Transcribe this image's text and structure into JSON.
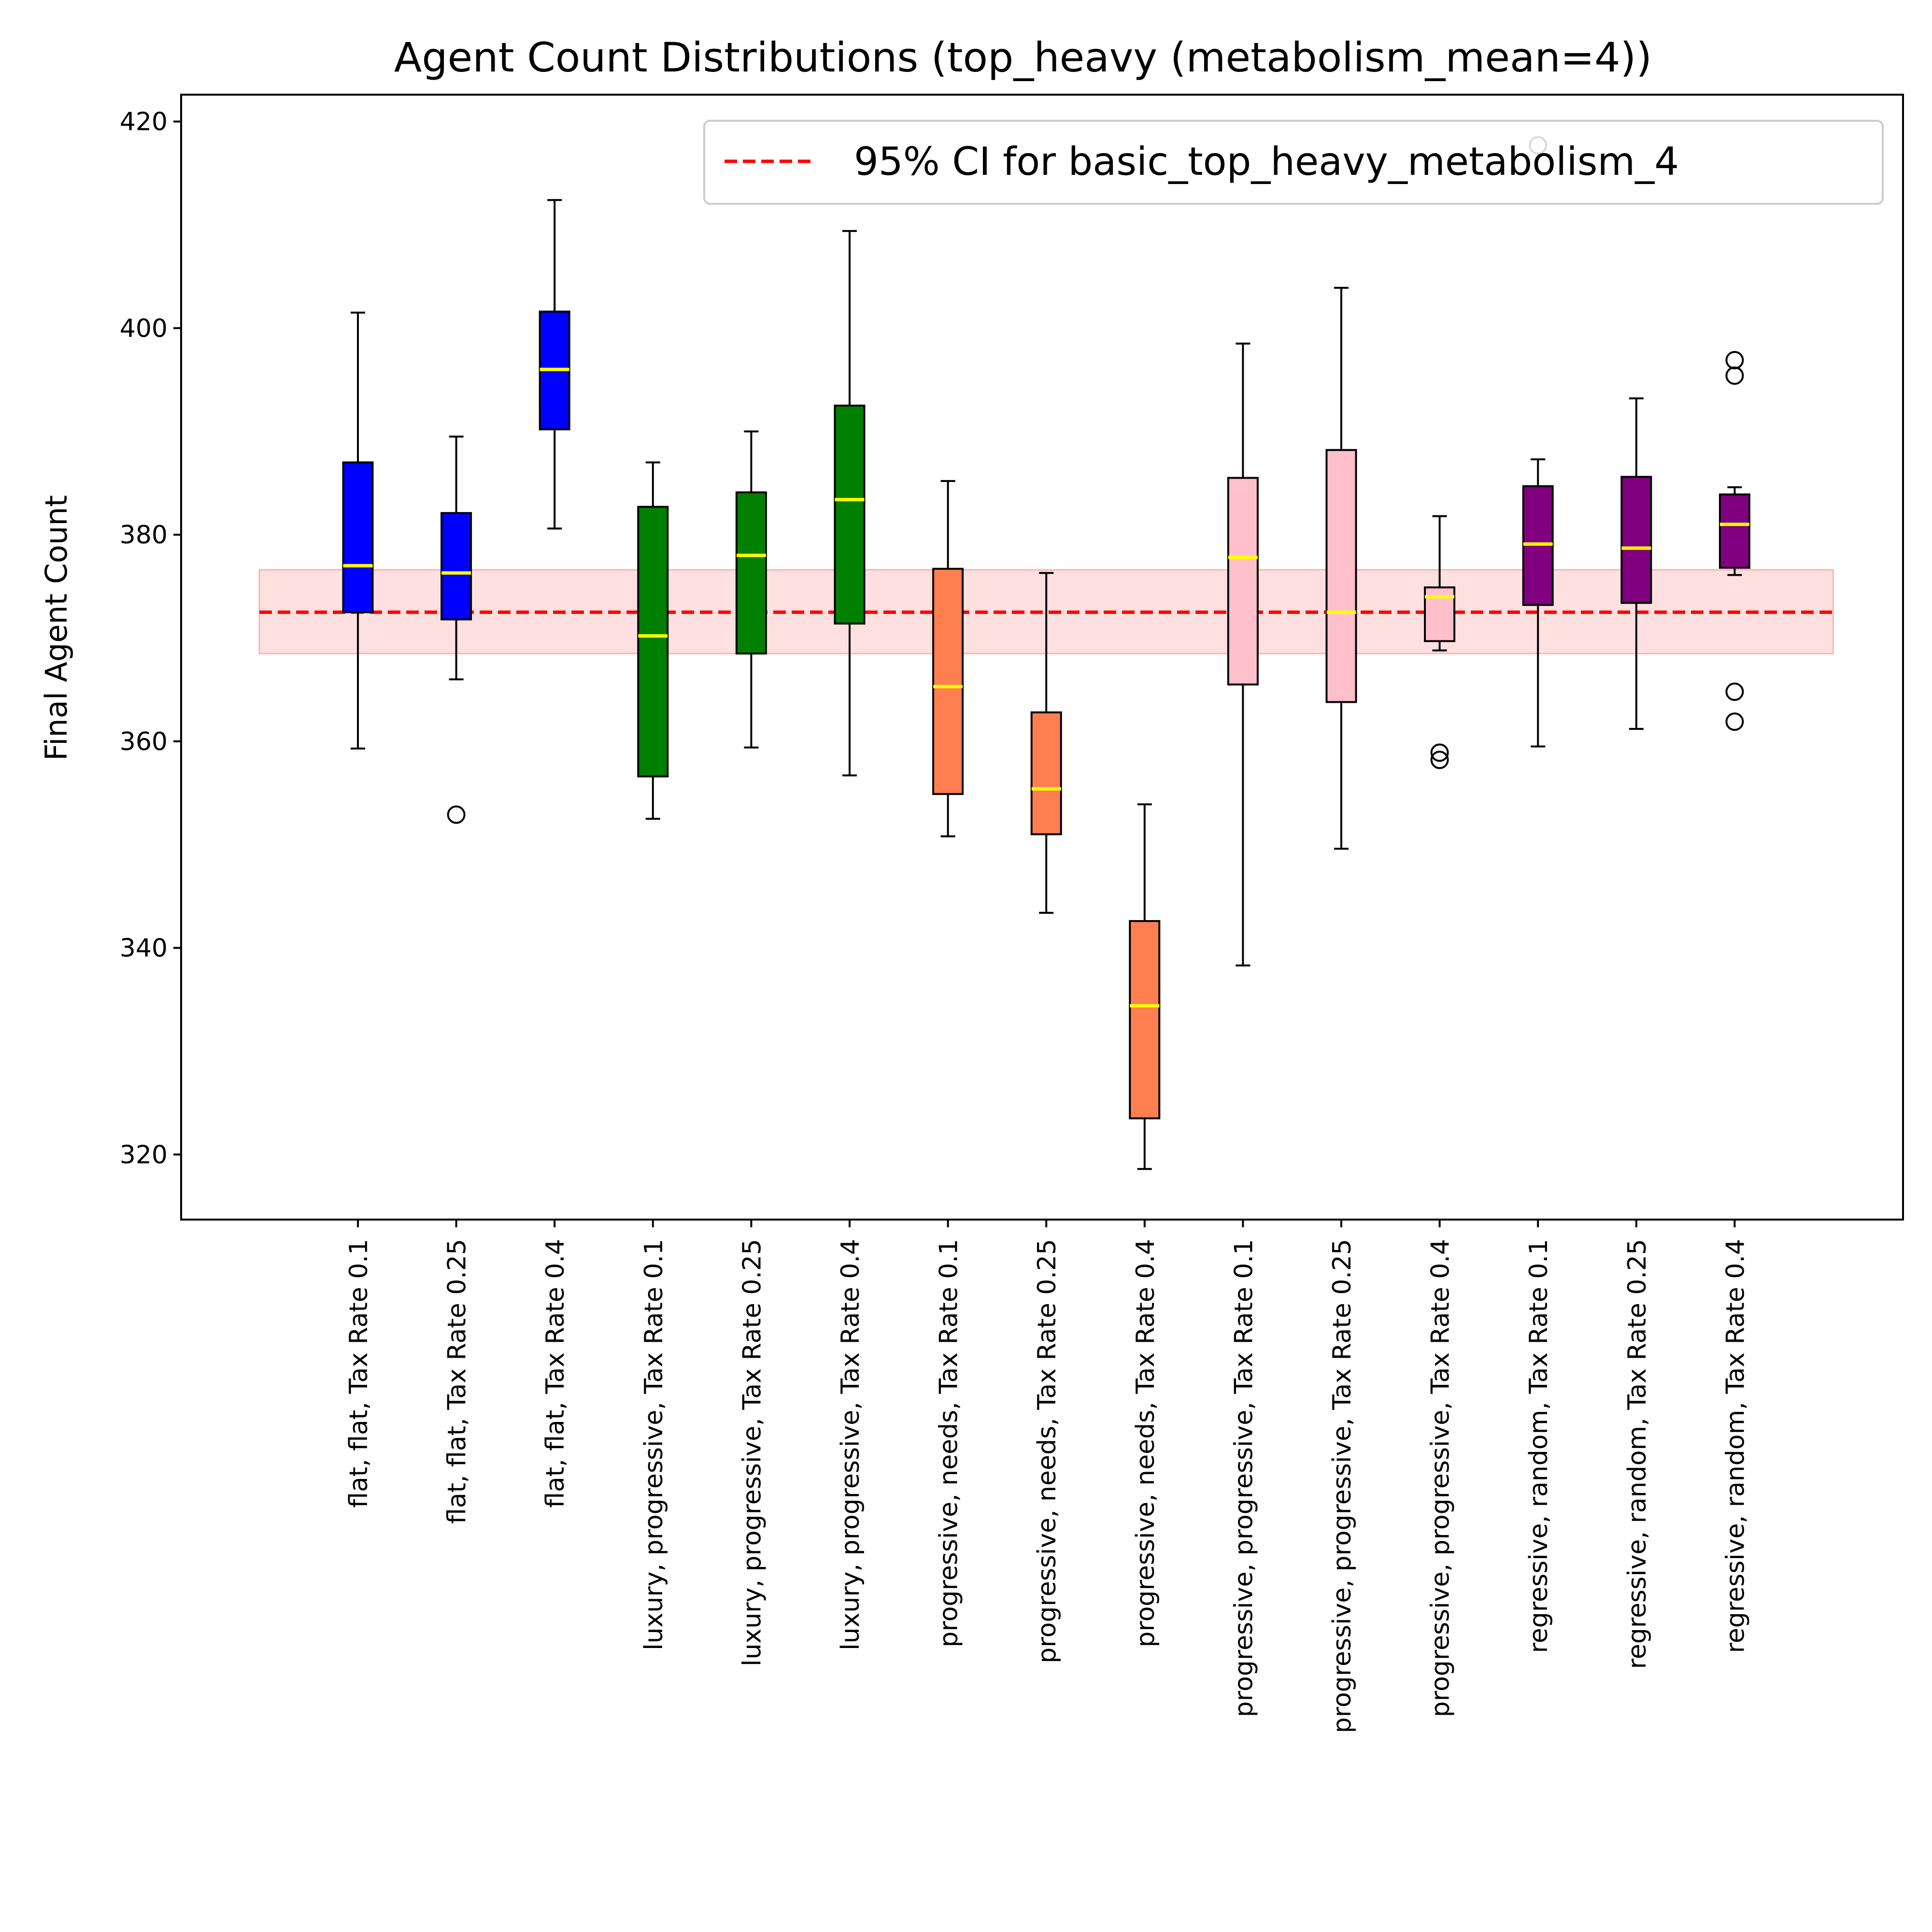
{
  "chart_data": {
    "type": "box",
    "title": "Agent Count Distributions (top_heavy (metabolism_mean=4))",
    "xlabel": "",
    "ylabel": "Final Agent Count",
    "ylim": [
      313.7,
      422.6
    ],
    "yticks": [
      320,
      340,
      360,
      380,
      400,
      420
    ],
    "grid": false,
    "legend": {
      "position": "top-right",
      "entries": [
        {
          "label": "95% CI for basic_top_heavy_metabolism_4",
          "style": "dashed-line",
          "color": "#ff0000"
        }
      ]
    },
    "reference": {
      "mean": 372.5,
      "ci_low": 368.5,
      "ci_high": 376.6,
      "line_color": "#ff0000",
      "band_color": "#ffdada"
    },
    "median_color": "#ffff00",
    "boxes": [
      {
        "label": "flat, flat, Tax Rate 0.1",
        "color": "#0000ff",
        "whislo": 359.3,
        "q1": 372.5,
        "med": 377.0,
        "q3": 387.0,
        "whishi": 401.5,
        "fliers": []
      },
      {
        "label": "flat, flat, Tax Rate 0.25",
        "color": "#0000ff",
        "whislo": 366.0,
        "q1": 371.8,
        "med": 376.3,
        "q3": 382.1,
        "whishi": 389.5,
        "fliers": [
          352.9
        ]
      },
      {
        "label": "flat, flat, Tax Rate 0.4",
        "color": "#0000ff",
        "whislo": 380.6,
        "q1": 390.2,
        "med": 396.0,
        "q3": 401.6,
        "whishi": 412.4,
        "fliers": []
      },
      {
        "label": "luxury, progressive, Tax Rate 0.1",
        "color": "#008000",
        "whislo": 352.5,
        "q1": 356.6,
        "med": 370.2,
        "q3": 382.7,
        "whishi": 387.0,
        "fliers": []
      },
      {
        "label": "luxury, progressive, Tax Rate 0.25",
        "color": "#008000",
        "whislo": 359.4,
        "q1": 368.5,
        "med": 378.0,
        "q3": 384.1,
        "whishi": 390.0,
        "fliers": []
      },
      {
        "label": "luxury, progressive, Tax Rate 0.4",
        "color": "#008000",
        "whislo": 356.7,
        "q1": 371.4,
        "med": 383.4,
        "q3": 392.5,
        "whishi": 409.4,
        "fliers": []
      },
      {
        "label": "progressive, needs, Tax Rate 0.1",
        "color": "#ff7f50",
        "whislo": 350.8,
        "q1": 354.9,
        "med": 365.3,
        "q3": 376.7,
        "whishi": 385.2,
        "fliers": []
      },
      {
        "label": "progressive, needs, Tax Rate 0.25",
        "color": "#ff7f50",
        "whislo": 343.4,
        "q1": 351.0,
        "med": 355.4,
        "q3": 362.8,
        "whishi": 376.3,
        "fliers": []
      },
      {
        "label": "progressive, needs, Tax Rate 0.4",
        "color": "#ff7f50",
        "whislo": 318.6,
        "q1": 323.5,
        "med": 334.4,
        "q3": 342.6,
        "whishi": 353.9,
        "fliers": []
      },
      {
        "label": "progressive, progressive, Tax Rate 0.1",
        "color": "#ffc0cb",
        "whislo": 338.3,
        "q1": 365.5,
        "med": 377.8,
        "q3": 385.5,
        "whishi": 398.5,
        "fliers": []
      },
      {
        "label": "progressive, progressive, Tax Rate 0.25",
        "color": "#ffc0cb",
        "whislo": 349.6,
        "q1": 363.8,
        "med": 372.5,
        "q3": 388.2,
        "whishi": 403.9,
        "fliers": []
      },
      {
        "label": "progressive, progressive, Tax Rate 0.4",
        "color": "#ffc0cb",
        "whislo": 368.8,
        "q1": 369.7,
        "med": 374.0,
        "q3": 374.9,
        "whishi": 381.8,
        "fliers": [
          358.9,
          358.2
        ]
      },
      {
        "label": "regressive, random, Tax Rate 0.1",
        "color": "#800080",
        "whislo": 359.5,
        "q1": 373.2,
        "med": 379.1,
        "q3": 384.7,
        "whishi": 387.3,
        "fliers": [
          417.7
        ]
      },
      {
        "label": "regressive, random, Tax Rate 0.25",
        "color": "#800080",
        "whislo": 361.2,
        "q1": 373.4,
        "med": 378.7,
        "q3": 385.6,
        "whishi": 393.2,
        "fliers": []
      },
      {
        "label": "regressive, random, Tax Rate 0.4",
        "color": "#800080",
        "whislo": 376.1,
        "q1": 376.8,
        "med": 381.0,
        "q3": 383.9,
        "whishi": 384.6,
        "fliers": [
          364.8,
          361.9,
          395.4,
          396.9
        ]
      }
    ]
  }
}
